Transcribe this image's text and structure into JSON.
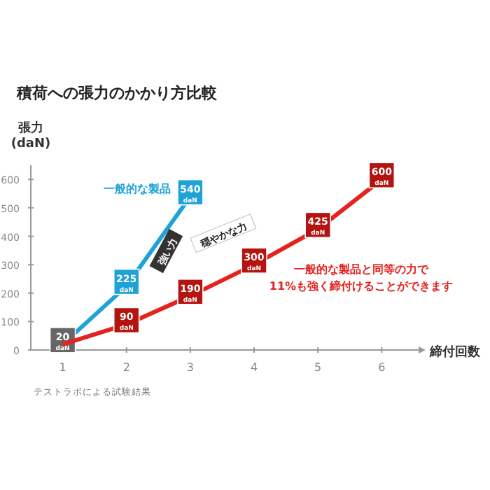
{
  "chart_data": {
    "type": "line",
    "title": "積荷への張力のかかり方比較",
    "xlabel": "締付回数",
    "ylabel": "張力 (daN)",
    "xlim": [
      0.5,
      6.6
    ],
    "ylim": [
      0,
      650
    ],
    "xticks": [
      1,
      2,
      3,
      4,
      5,
      6
    ],
    "yticks": [
      0,
      100,
      200,
      300,
      400,
      500,
      600
    ],
    "series": [
      {
        "name": "一般的な製品",
        "color": "#1fa3d6",
        "x": [
          1,
          2,
          3
        ],
        "values": [
          20,
          225,
          540
        ],
        "value_labels": [
          "20$_{daN}$",
          "225$_{daN}$",
          "540$_{daN}$"
        ]
      },
      {
        "color": "#e4231e",
        "x": [
          1,
          2,
          3,
          4,
          5,
          6
        ],
        "values": [
          20,
          90,
          190,
          300,
          425,
          600
        ],
        "value_labels": [
          null,
          "90$_{daN}$",
          "190$_{daN}$",
          "300$_{daN}$",
          "425$_{daN}$",
          "600$_{daN}$"
        ]
      }
    ],
    "annotations": [
      "強い力",
      "穏やかな力",
      "一般的な製品と同等の力で11%も強く締付けることができます",
      "テストラボによる試験結果"
    ]
  }
}
